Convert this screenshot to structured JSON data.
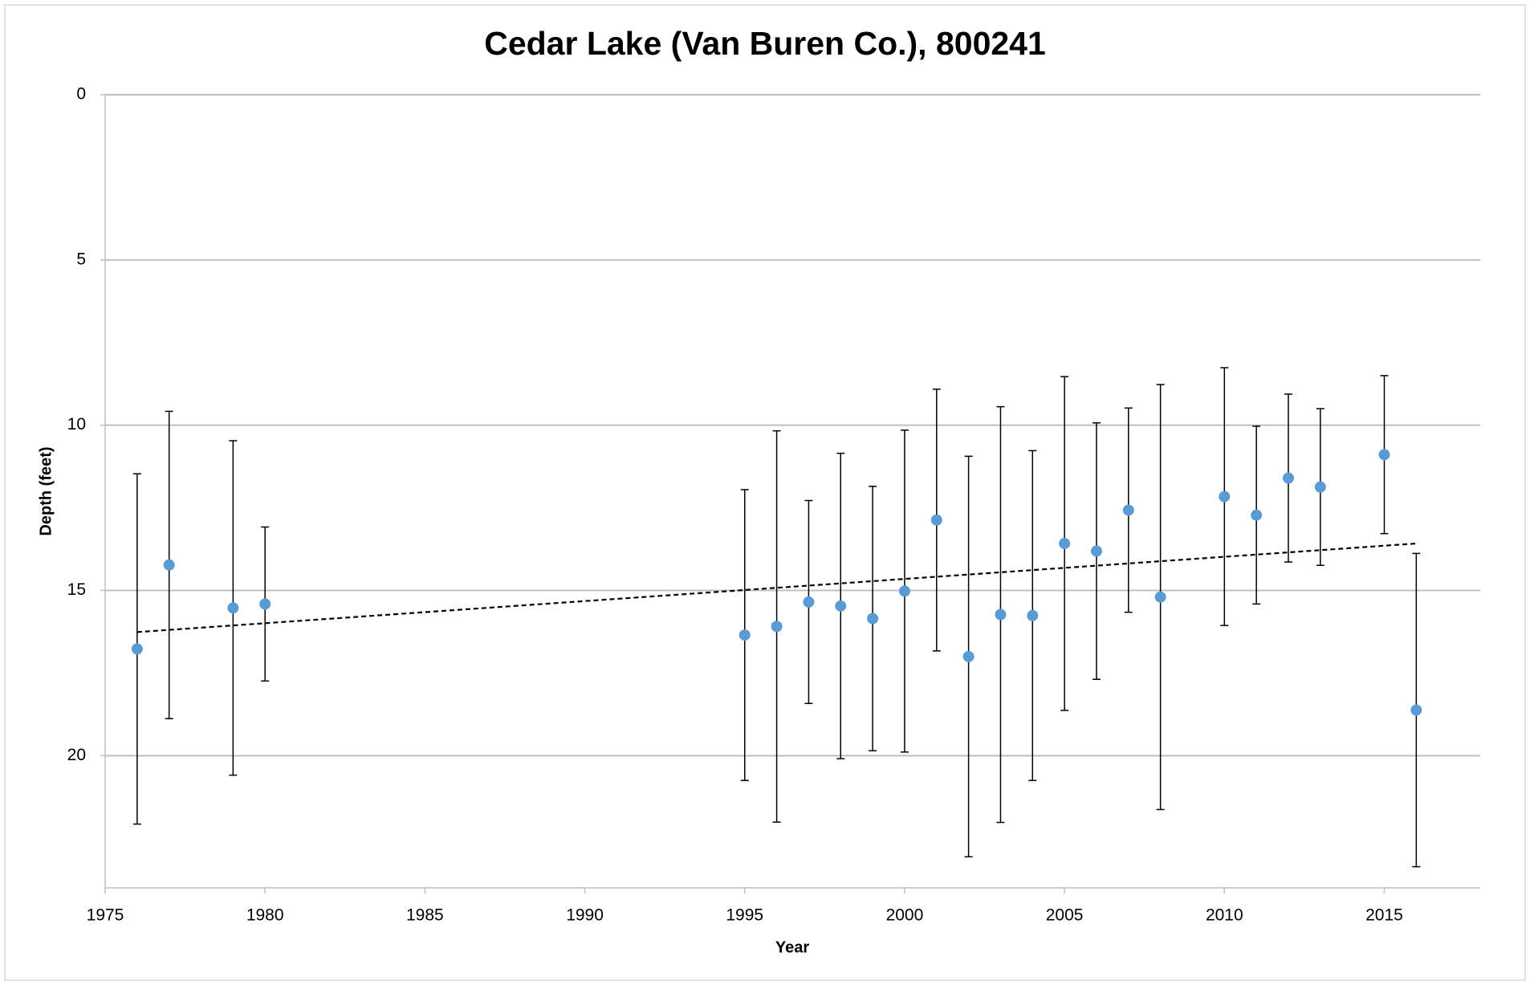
{
  "chart_data": {
    "type": "scatter",
    "title": "Cedar Lake (Van Buren Co.), 800241",
    "x_label": "Year",
    "y_label": "Depth (feet)",
    "x": [
      1976,
      1977,
      1979,
      1980,
      1995,
      1996,
      1997,
      1998,
      1999,
      2000,
      2001,
      2002,
      2003,
      2004,
      2005,
      2006,
      2007,
      2008,
      2010,
      2011,
      2012,
      2013,
      2015,
      2016
    ],
    "series": [
      {
        "color": "#5b9bd5",
        "values": [
          16.77,
          14.23,
          15.53,
          15.41,
          16.35,
          16.09,
          15.35,
          15.47,
          15.85,
          15.02,
          12.87,
          17.0,
          15.73,
          15.76,
          13.58,
          13.81,
          12.57,
          15.2,
          12.16,
          12.72,
          11.6,
          11.87,
          10.89,
          18.62
        ],
        "errors": [
          5.3,
          4.65,
          5.06,
          2.33,
          4.4,
          5.92,
          3.07,
          4.62,
          4.0,
          4.87,
          3.96,
          6.06,
          6.29,
          4.99,
          5.05,
          3.88,
          3.09,
          6.43,
          3.9,
          2.69,
          2.54,
          2.37,
          2.39,
          4.74
        ]
      }
    ],
    "trendline": {
      "x": [
        1976,
        2016
      ],
      "values": [
        16.26,
        13.58
      ],
      "color": "#000000"
    },
    "xlim": [
      1975,
      2018
    ],
    "xticks": [
      1975,
      1980,
      1985,
      1990,
      1995,
      2000,
      2005,
      2010,
      2015
    ],
    "ylim": [
      0,
      24
    ],
    "yticks": [
      0,
      5,
      10,
      15,
      20
    ],
    "y_inverted": true,
    "grid": true
  }
}
